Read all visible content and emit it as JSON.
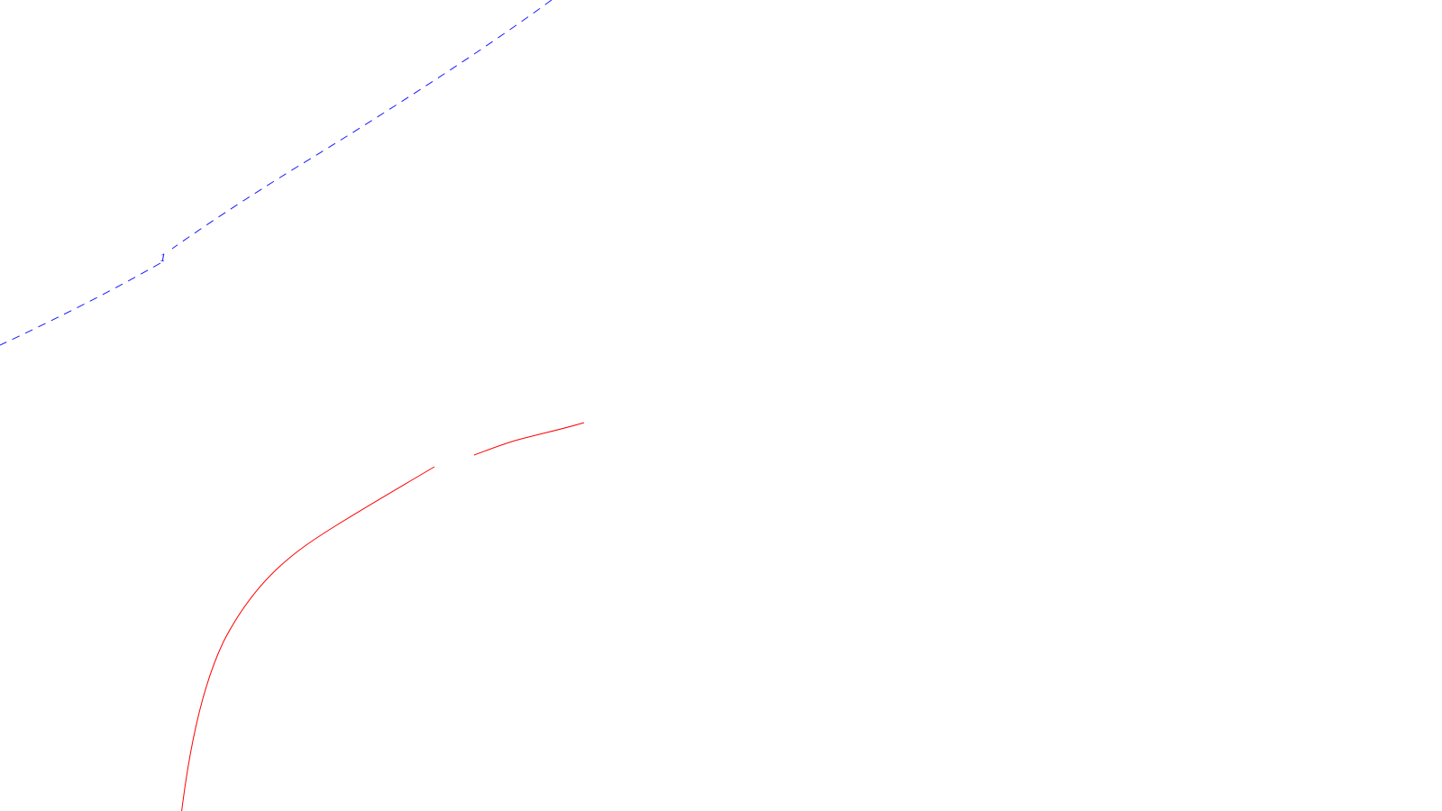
{
  "contours": [
    {
      "id": "blue-dashed",
      "label": "1",
      "color": "#1a1aff",
      "style": "dashed"
    },
    {
      "id": "red-solid",
      "label": "",
      "color": "#ff0000",
      "style": "solid"
    }
  ]
}
